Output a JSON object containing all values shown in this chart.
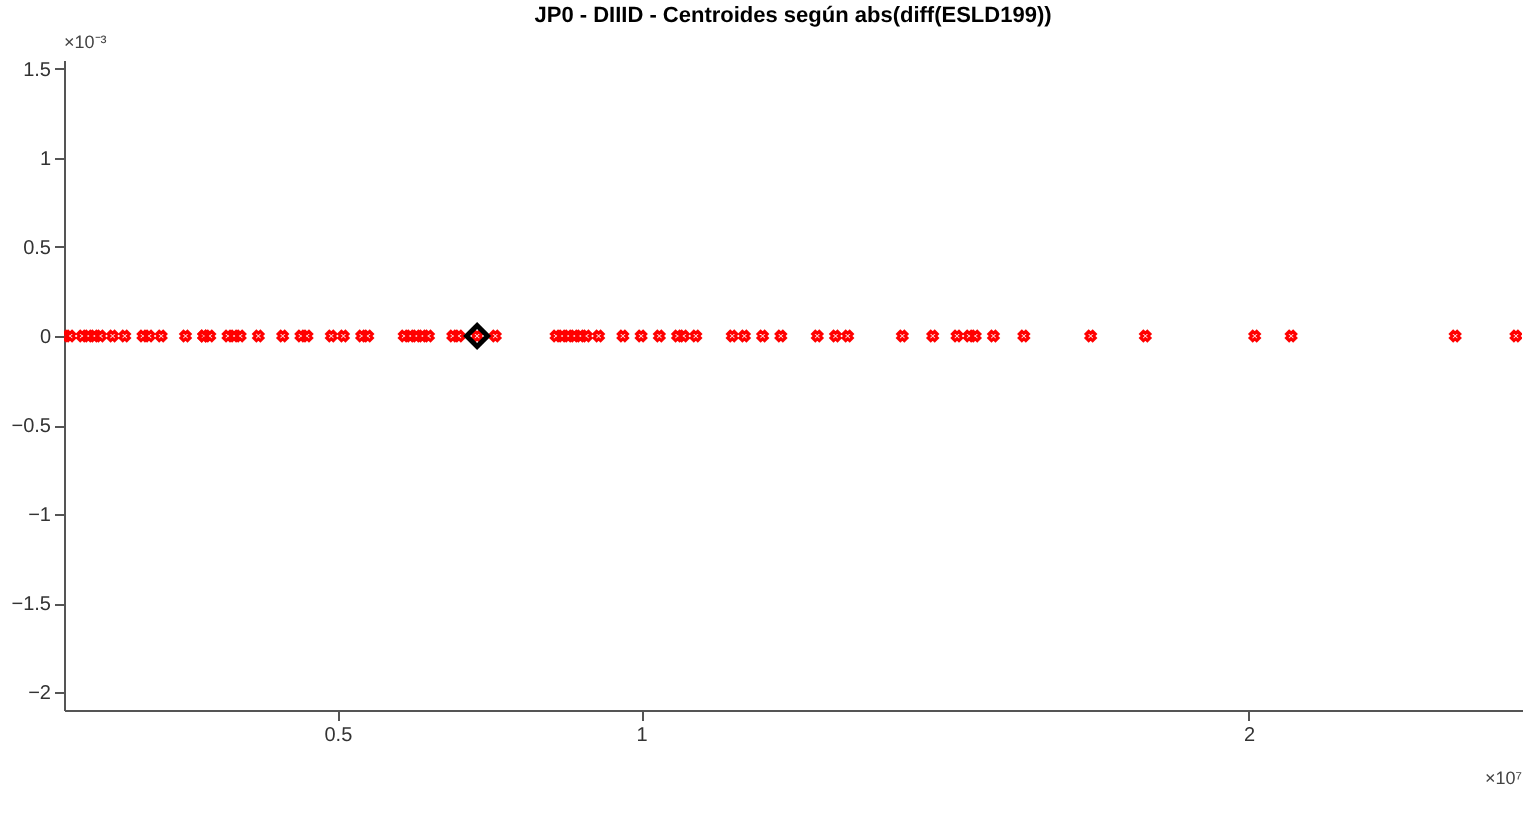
{
  "chart_data": {
    "type": "scatter",
    "title": "JP0 - DIIID - Centroides según abs(diff(ESLD199))",
    "xlim": [
      0.05,
      2.45
    ],
    "xticks": [
      0.5,
      1,
      2
    ],
    "ylim": [
      -2.1,
      1.55
    ],
    "yticks": [
      -2,
      -1.5,
      -1,
      -0.5,
      0,
      0.5,
      1,
      1.5
    ],
    "grid": false,
    "annotations": [
      "×10⁻³",
      "×10⁷"
    ],
    "series": [
      {
        "color": "#ff0000",
        "marker": "cross",
        "x": [
          0.05,
          0.06,
          0.08,
          0.09,
          0.1,
          0.11,
          0.13,
          0.15,
          0.18,
          0.19,
          0.21,
          0.25,
          0.28,
          0.28,
          0.29,
          0.32,
          0.33,
          0.34,
          0.37,
          0.41,
          0.44,
          0.45,
          0.49,
          0.51,
          0.54,
          0.55,
          0.61,
          0.62,
          0.63,
          0.64,
          0.65,
          0.69,
          0.7,
          0.73,
          0.76,
          0.86,
          0.87,
          0.88,
          0.89,
          0.9,
          0.91,
          0.93,
          0.97,
          1.0,
          1.03,
          1.06,
          1.07,
          1.09,
          1.15,
          1.17,
          1.2,
          1.23,
          1.29,
          1.32,
          1.34,
          1.43,
          1.48,
          1.52,
          1.54,
          1.55,
          1.58,
          1.63,
          1.74,
          1.83,
          2.01,
          2.07,
          2.34,
          2.44
        ],
        "values": [
          0,
          0,
          0,
          0,
          0,
          0,
          0,
          0,
          0,
          0,
          0,
          0,
          0,
          0,
          0,
          0,
          0,
          0,
          0,
          0,
          0,
          0,
          0,
          0,
          0,
          0,
          0,
          0,
          0,
          0,
          0,
          0,
          0,
          0,
          0,
          0,
          0,
          0,
          0,
          0,
          0,
          0,
          0,
          0,
          0,
          0,
          0,
          0,
          0,
          0,
          0,
          0,
          0,
          0,
          0,
          0,
          0,
          0,
          0,
          0,
          0,
          0,
          0,
          0,
          0,
          0,
          0,
          0
        ]
      },
      {
        "color": "#000000",
        "marker": "diamond",
        "x": [
          0.73
        ],
        "values": [
          0
        ]
      }
    ]
  }
}
